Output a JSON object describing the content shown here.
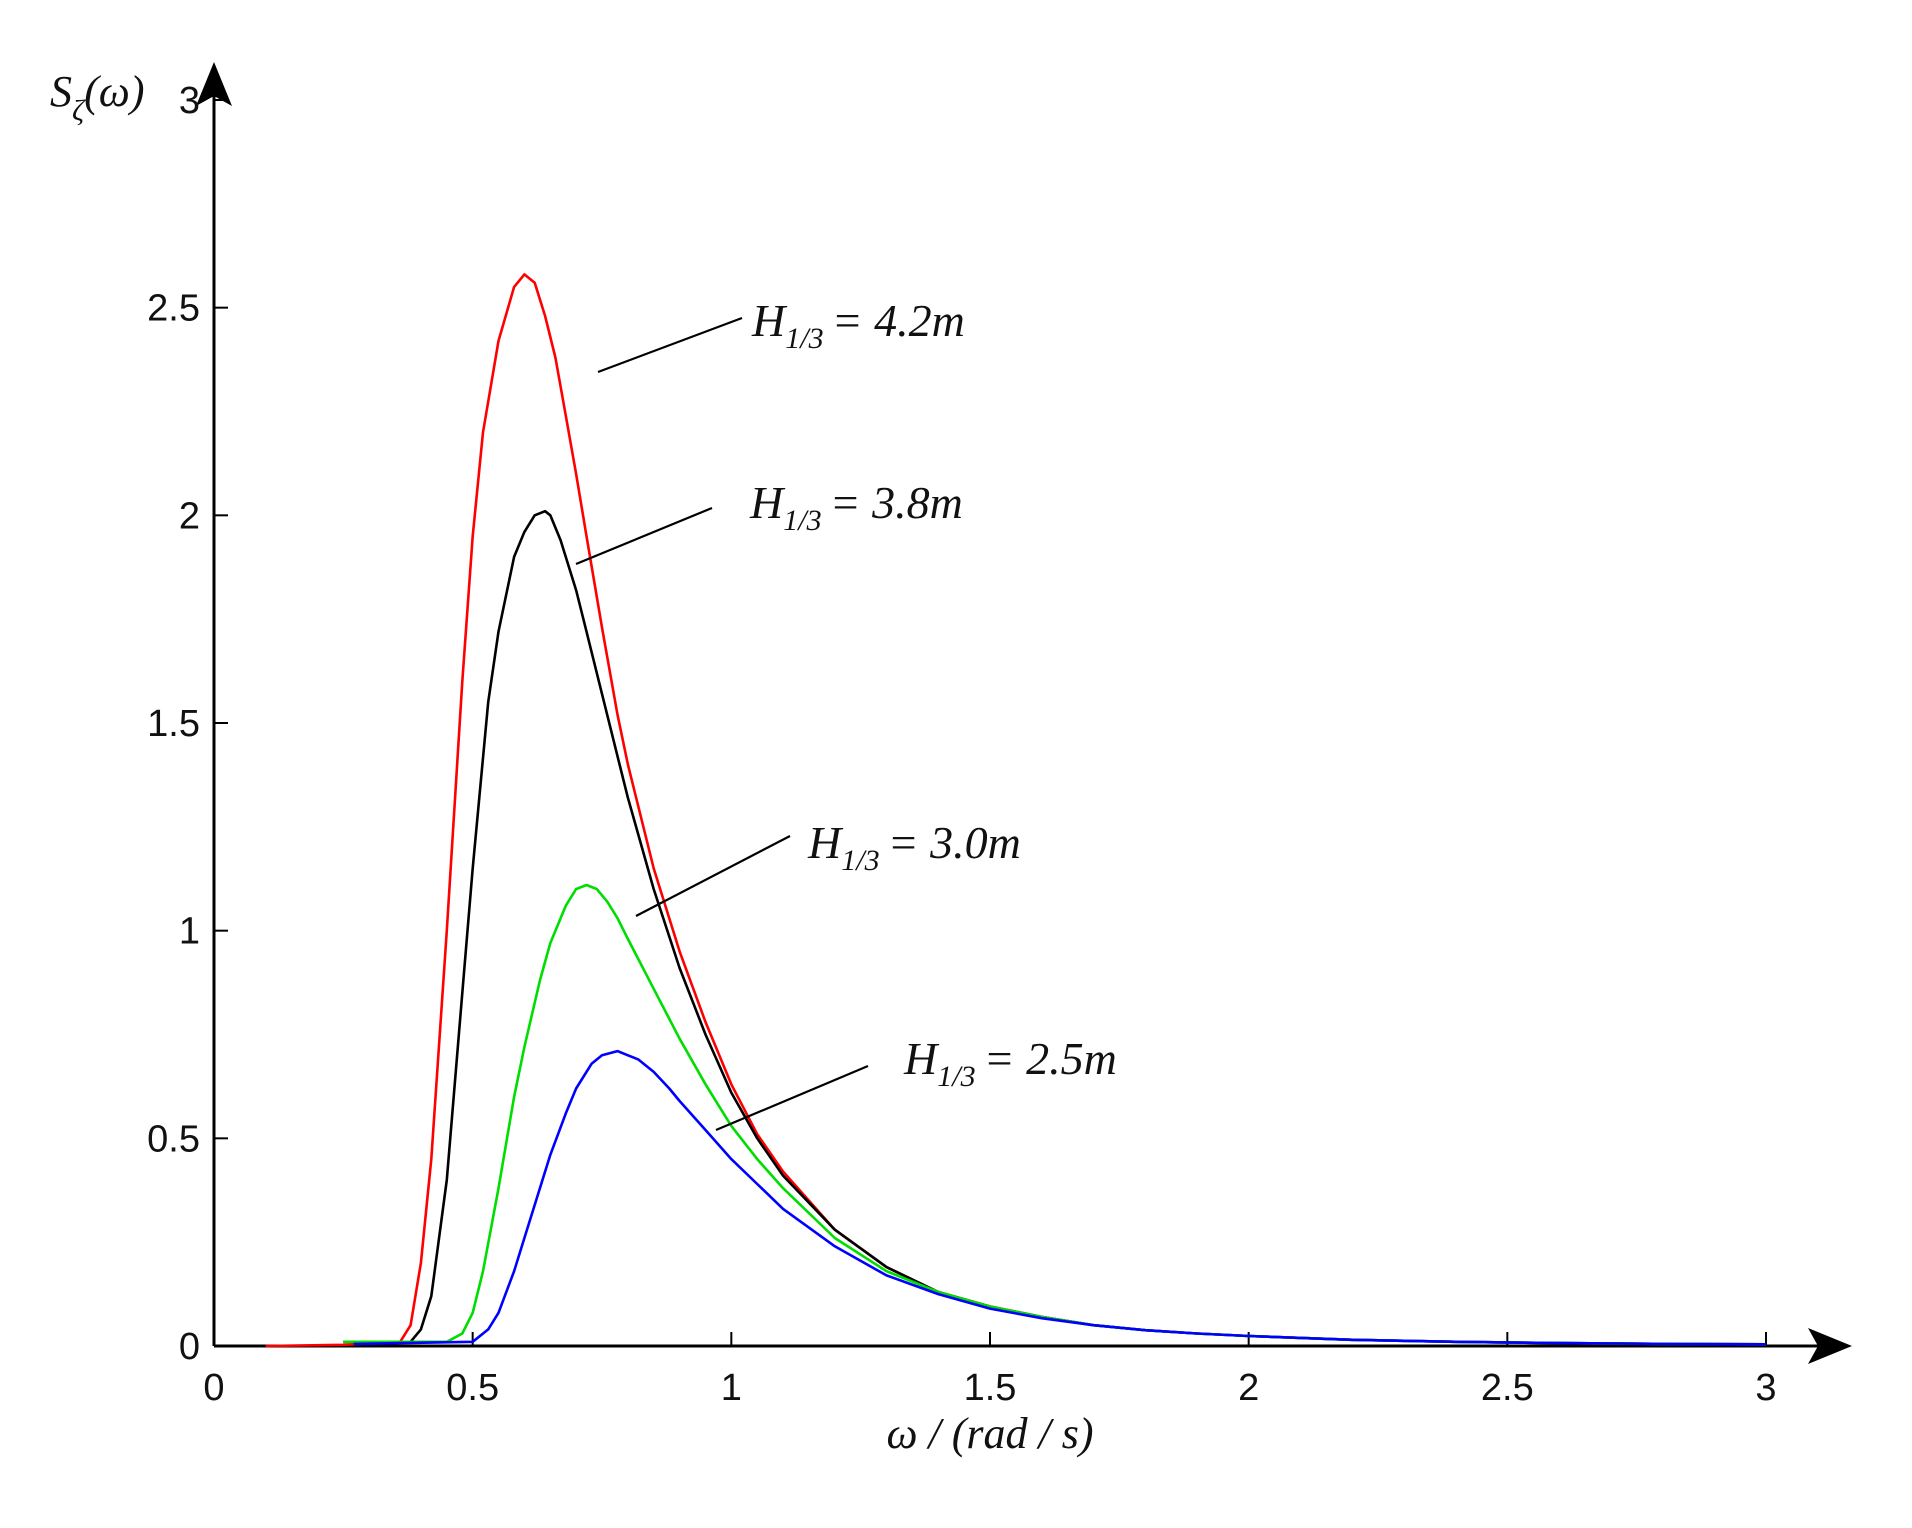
{
  "chart_data": {
    "type": "line",
    "title": "",
    "xlabel": "ω / (rad / s)",
    "ylabel_main": "S",
    "ylabel_sub": "ζ",
    "ylabel_rest": "(ω)",
    "xlim": [
      0,
      3
    ],
    "ylim": [
      0,
      3
    ],
    "xticks": [
      "0",
      "0.5",
      "1",
      "1.5",
      "2",
      "2.5",
      "3"
    ],
    "yticks": [
      "0",
      "0.5",
      "1",
      "1.5",
      "2",
      "2.5",
      "3"
    ],
    "grid": false,
    "series": [
      {
        "color": "#ff0000",
        "x": [
          0.1,
          0.25,
          0.36,
          0.38,
          0.4,
          0.42,
          0.45,
          0.48,
          0.5,
          0.52,
          0.55,
          0.58,
          0.6,
          0.62,
          0.64,
          0.66,
          0.68,
          0.7,
          0.72,
          0.75,
          0.78,
          0.8,
          0.85,
          0.9,
          0.95,
          1.0,
          1.05,
          1.1,
          1.2,
          1.3,
          1.4,
          1.5,
          1.6,
          1.7,
          1.8,
          1.9,
          2.0,
          2.2,
          2.4,
          2.6,
          2.8,
          3.0
        ],
        "y": [
          0,
          0.003,
          0.01,
          0.05,
          0.2,
          0.45,
          1.0,
          1.6,
          1.95,
          2.2,
          2.42,
          2.55,
          2.58,
          2.56,
          2.48,
          2.38,
          2.24,
          2.1,
          1.95,
          1.73,
          1.52,
          1.4,
          1.15,
          0.95,
          0.78,
          0.63,
          0.51,
          0.42,
          0.28,
          0.19,
          0.13,
          0.095,
          0.07,
          0.05,
          0.038,
          0.03,
          0.024,
          0.015,
          0.01,
          0.007,
          0.005,
          0.004
        ]
      },
      {
        "color": "#000000",
        "x": [
          0.25,
          0.38,
          0.4,
          0.42,
          0.45,
          0.48,
          0.5,
          0.53,
          0.55,
          0.58,
          0.6,
          0.62,
          0.64,
          0.65,
          0.67,
          0.7,
          0.72,
          0.75,
          0.78,
          0.8,
          0.85,
          0.9,
          0.95,
          1.0,
          1.05,
          1.1,
          1.2,
          1.3,
          1.4,
          1.5,
          1.6,
          1.7,
          1.8,
          1.9,
          2.0,
          2.2,
          2.4,
          2.6,
          2.8,
          3.0
        ],
        "y": [
          0.01,
          0.01,
          0.04,
          0.12,
          0.4,
          0.85,
          1.15,
          1.55,
          1.72,
          1.9,
          1.96,
          2.0,
          2.01,
          2.0,
          1.94,
          1.82,
          1.72,
          1.57,
          1.42,
          1.32,
          1.1,
          0.91,
          0.75,
          0.61,
          0.5,
          0.41,
          0.28,
          0.19,
          0.13,
          0.095,
          0.07,
          0.05,
          0.038,
          0.03,
          0.024,
          0.015,
          0.01,
          0.007,
          0.005,
          0.004
        ]
      },
      {
        "color": "#00dd00",
        "x": [
          0.25,
          0.45,
          0.48,
          0.5,
          0.52,
          0.55,
          0.58,
          0.6,
          0.63,
          0.65,
          0.68,
          0.7,
          0.72,
          0.74,
          0.76,
          0.78,
          0.8,
          0.85,
          0.9,
          0.95,
          1.0,
          1.05,
          1.1,
          1.2,
          1.3,
          1.4,
          1.5,
          1.6,
          1.7,
          1.8,
          1.9,
          2.0,
          2.2,
          2.4,
          2.6,
          2.8,
          3.0
        ],
        "y": [
          0.01,
          0.01,
          0.03,
          0.08,
          0.18,
          0.38,
          0.6,
          0.72,
          0.88,
          0.97,
          1.06,
          1.1,
          1.11,
          1.1,
          1.07,
          1.03,
          0.98,
          0.86,
          0.74,
          0.63,
          0.53,
          0.45,
          0.38,
          0.26,
          0.18,
          0.13,
          0.095,
          0.07,
          0.05,
          0.038,
          0.03,
          0.024,
          0.015,
          0.01,
          0.007,
          0.005,
          0.004
        ]
      },
      {
        "color": "#0000ff",
        "x": [
          0.27,
          0.5,
          0.53,
          0.55,
          0.58,
          0.6,
          0.63,
          0.65,
          0.68,
          0.7,
          0.73,
          0.75,
          0.78,
          0.8,
          0.82,
          0.85,
          0.88,
          0.9,
          0.95,
          1.0,
          1.05,
          1.1,
          1.2,
          1.3,
          1.4,
          1.5,
          1.6,
          1.7,
          1.8,
          1.9,
          2.0,
          2.2,
          2.4,
          2.6,
          2.8,
          3.0
        ],
        "y": [
          0.005,
          0.01,
          0.04,
          0.08,
          0.18,
          0.26,
          0.38,
          0.46,
          0.56,
          0.62,
          0.68,
          0.7,
          0.71,
          0.7,
          0.69,
          0.66,
          0.62,
          0.59,
          0.52,
          0.45,
          0.39,
          0.33,
          0.24,
          0.17,
          0.125,
          0.09,
          0.067,
          0.05,
          0.038,
          0.03,
          0.024,
          0.015,
          0.01,
          0.007,
          0.005,
          0.004
        ]
      }
    ],
    "annotations": [
      {
        "H": "H",
        "sub": "1/3",
        "rest": "= 4.2m"
      },
      {
        "H": "H",
        "sub": "1/3",
        "rest": "= 3.8m"
      },
      {
        "H": "H",
        "sub": "1/3",
        "rest": "= 3.0m"
      },
      {
        "H": "H",
        "sub": "1/3",
        "rest": "= 2.5m"
      }
    ]
  }
}
